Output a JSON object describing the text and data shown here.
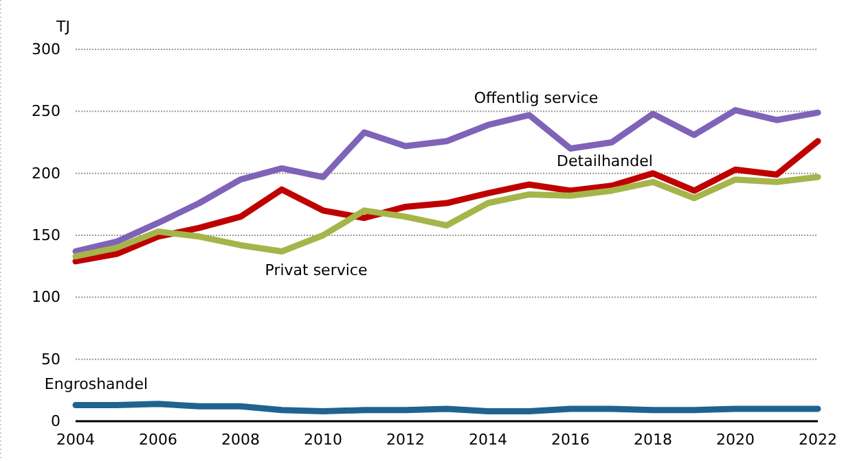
{
  "chart_data": {
    "type": "line",
    "ylabel": "TJ",
    "x": [
      2004,
      2005,
      2006,
      2007,
      2008,
      2009,
      2010,
      2011,
      2012,
      2013,
      2014,
      2015,
      2016,
      2017,
      2018,
      2019,
      2020,
      2021,
      2022
    ],
    "series": [
      {
        "name": "Offentlig service",
        "color": "#7f63b8",
        "values": [
          137,
          145,
          160,
          176,
          195,
          204,
          197,
          233,
          222,
          226,
          239,
          247,
          220,
          225,
          248,
          231,
          251,
          243,
          249
        ]
      },
      {
        "name": "Detailhandel",
        "color": "#c00000",
        "values": [
          129,
          135,
          149,
          156,
          165,
          187,
          170,
          164,
          173,
          176,
          184,
          191,
          186,
          190,
          200,
          186,
          203,
          199,
          226
        ]
      },
      {
        "name": "Privat service",
        "color": "#a5b54a",
        "values": [
          133,
          140,
          153,
          149,
          142,
          137,
          150,
          170,
          165,
          158,
          176,
          183,
          182,
          186,
          193,
          180,
          195,
          193,
          197
        ]
      },
      {
        "name": "Engroshandel",
        "color": "#1f6391",
        "values": [
          13,
          13,
          14,
          12,
          12,
          9,
          8,
          9,
          9,
          10,
          8,
          8,
          10,
          10,
          9,
          9,
          10,
          10,
          10
        ]
      }
    ],
    "xlim": [
      2004,
      2022
    ],
    "xticks": [
      2004,
      2006,
      2008,
      2010,
      2012,
      2014,
      2016,
      2018,
      2020,
      2022
    ],
    "ylim": [
      0,
      300
    ],
    "yticks": [
      0,
      50,
      100,
      150,
      200,
      250,
      300
    ],
    "grid": "y",
    "legend": false,
    "marker": "none",
    "line_style": "solid"
  }
}
